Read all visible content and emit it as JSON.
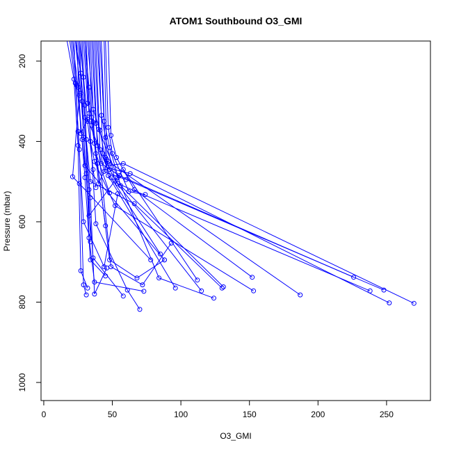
{
  "chart_data": {
    "type": "line",
    "title": "ATOM1 Southbound O3_GMI",
    "xlabel": "O3_GMI",
    "ylabel": "Pressure (mbar)",
    "xlim": [
      -2,
      282
    ],
    "ylim": [
      1045,
      150
    ],
    "y_reversed": true,
    "grid": false,
    "color": "#0000ff",
    "x_ticks": [
      "0",
      "50",
      "100",
      "150",
      "200",
      "250"
    ],
    "y_ticks": [
      "200",
      "400",
      "600",
      "800",
      "1000"
    ],
    "x_tick_values": [
      0,
      50,
      100,
      150,
      200,
      250
    ],
    "y_tick_values": [
      200,
      400,
      600,
      800,
      1000
    ],
    "series": [
      {
        "x": [
          17,
          22,
          25,
          27,
          32
        ],
        "y": [
          150,
          245,
          410,
          722,
          765
        ]
      },
      {
        "x": [
          19,
          23,
          26,
          29,
          31
        ],
        "y": [
          150,
          255,
          420,
          757,
          782
        ]
      },
      {
        "x": [
          21,
          25,
          30,
          34,
          45
        ],
        "y": [
          150,
          265,
          490,
          695,
          735
        ]
      },
      {
        "x": [
          23,
          27,
          31,
          36,
          58
        ],
        "y": [
          150,
          280,
          480,
          690,
          785
        ]
      },
      {
        "x": [
          25,
          28,
          34,
          37,
          46
        ],
        "y": [
          150,
          300,
          540,
          780,
          715
        ]
      },
      {
        "x": [
          27,
          30,
          33,
          37,
          73
        ],
        "y": [
          150,
          310,
          640,
          750,
          773
        ]
      },
      {
        "x": [
          30,
          33,
          38,
          61,
          70
        ],
        "y": [
          150,
          330,
          605,
          770,
          818
        ]
      },
      {
        "x": [
          33,
          35,
          48,
          68,
          88
        ],
        "y": [
          150,
          340,
          695,
          740,
          695
        ]
      },
      {
        "x": [
          35,
          38,
          49,
          72,
          93
        ],
        "y": [
          150,
          355,
          712,
          757,
          653
        ]
      },
      {
        "x": [
          37,
          40,
          54,
          84,
          124
        ],
        "y": [
          150,
          370,
          490,
          740,
          790
        ]
      },
      {
        "x": [
          22,
          25,
          29,
          44,
          54
        ],
        "y": [
          150,
          375,
          600,
          712,
          530
        ]
      },
      {
        "x": [
          24,
          27,
          32,
          49,
          85
        ],
        "y": [
          150,
          380,
          345,
          490,
          680
        ]
      },
      {
        "x": [
          26,
          29,
          33,
          58,
          112
        ],
        "y": [
          150,
          390,
          585,
          470,
          745
        ]
      },
      {
        "x": [
          28,
          31,
          34,
          66,
          130
        ],
        "y": [
          150,
          395,
          500,
          555,
          765
        ]
      },
      {
        "x": [
          31,
          34,
          37,
          52,
          153
        ],
        "y": [
          150,
          400,
          450,
          560,
          772
        ]
      },
      {
        "x": [
          34,
          37,
          40,
          47,
          187
        ],
        "y": [
          150,
          405,
          505,
          450,
          782
        ]
      },
      {
        "x": [
          36,
          39,
          42,
          55,
          226
        ],
        "y": [
          150,
          410,
          455,
          485,
          738
        ]
      },
      {
        "x": [
          38,
          41,
          44,
          60,
          248
        ],
        "y": [
          150,
          420,
          475,
          495,
          770
        ]
      },
      {
        "x": [
          40,
          43,
          46,
          63,
          252
        ],
        "y": [
          150,
          430,
          465,
          480,
          802
        ]
      },
      {
        "x": [
          42,
          45,
          47,
          58,
          270
        ],
        "y": [
          150,
          440,
          460,
          455,
          803
        ]
      },
      {
        "x": [
          44,
          46,
          48,
          54,
          238
        ],
        "y": [
          150,
          445,
          470,
          505,
          772
        ]
      },
      {
        "x": [
          20,
          24,
          28,
          30,
          88
        ],
        "y": [
          150,
          260,
          395,
          460,
          695
        ]
      },
      {
        "x": [
          24,
          26,
          21,
          26,
          78
        ],
        "y": [
          150,
          285,
          488,
          505,
          695
        ]
      },
      {
        "x": [
          29,
          32,
          36,
          39,
          45
        ],
        "y": [
          150,
          305,
          352,
          455,
          610
        ]
      },
      {
        "x": [
          32,
          36,
          41,
          47,
          96
        ],
        "y": [
          150,
          320,
          372,
          485,
          765
        ]
      },
      {
        "x": [
          39,
          42,
          45,
          52,
          115
        ],
        "y": [
          150,
          335,
          390,
          498,
          772
        ]
      },
      {
        "x": [
          41,
          44,
          48,
          56,
          131
        ],
        "y": [
          150,
          350,
          415,
          510,
          762
        ]
      },
      {
        "x": [
          45,
          47,
          50,
          62,
          74
        ],
        "y": [
          150,
          365,
          430,
          525,
          532
        ]
      },
      {
        "x": [
          47,
          49,
          53,
          66,
          152
        ],
        "y": [
          150,
          385,
          440,
          520,
          738
        ]
      },
      {
        "x": [
          23,
          27,
          30,
          33,
          34
        ],
        "y": [
          150,
          230,
          340,
          520,
          650
        ]
      },
      {
        "x": [
          26,
          29,
          32,
          36,
          38
        ],
        "y": [
          150,
          240,
          350,
          470,
          515
        ]
      },
      {
        "x": [
          30,
          33,
          35,
          38,
          48
        ],
        "y": [
          150,
          265,
          360,
          430,
          528
        ]
      }
    ]
  }
}
